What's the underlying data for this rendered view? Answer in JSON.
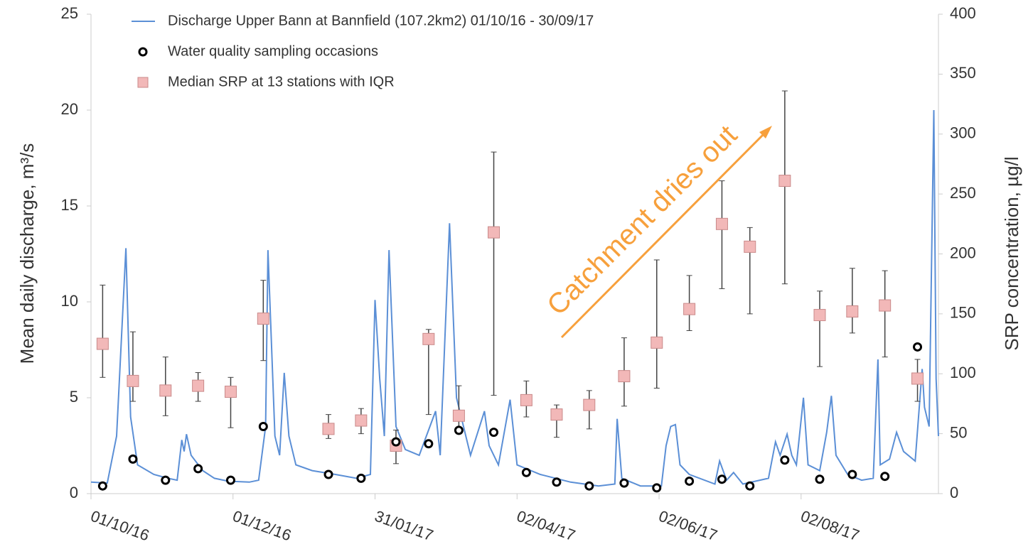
{
  "chart_data": {
    "type": "line",
    "y_label": "Mean daily discharge, m³/s",
    "y2_label": "SRP concentration, µg/l",
    "annotation": "Catchment dries out",
    "annotation_color": "#f7a03c",
    "xlim": [
      "2016-10-01",
      "2017-09-30"
    ],
    "xticks": [
      {
        "value": "2016-10-01",
        "label": "01/10/16"
      },
      {
        "value": "2016-12-01",
        "label": "01/12/16"
      },
      {
        "value": "2017-01-31",
        "label": "31/01/17"
      },
      {
        "value": "2017-04-02",
        "label": "02/04/17"
      },
      {
        "value": "2017-06-02",
        "label": "02/06/17"
      },
      {
        "value": "2017-08-02",
        "label": "02/08/17"
      }
    ],
    "ylim": [
      0,
      25
    ],
    "yticks": [
      0,
      5,
      10,
      15,
      20,
      25
    ],
    "y2lim": [
      0,
      400
    ],
    "y2ticks": [
      0,
      50,
      100,
      150,
      200,
      250,
      300,
      350,
      400
    ],
    "series": [
      {
        "name": "Discharge Upper Bann at Bannfield (107.2km2) 01/10/16 - 30/09/17",
        "type": "line",
        "color": "#5b8fd6",
        "x": [
          "2016-10-01",
          "2016-10-08",
          "2016-10-12",
          "2016-10-16",
          "2016-10-18",
          "2016-10-21",
          "2016-10-28",
          "2016-11-03",
          "2016-11-07",
          "2016-11-09",
          "2016-11-10",
          "2016-11-11",
          "2016-11-13",
          "2016-11-18",
          "2016-11-23",
          "2016-11-29",
          "2016-12-08",
          "2016-12-12",
          "2016-12-15",
          "2016-12-16",
          "2016-12-19",
          "2016-12-21",
          "2016-12-23",
          "2016-12-25",
          "2016-12-28",
          "2017-01-04",
          "2017-01-14",
          "2017-01-23",
          "2017-01-29",
          "2017-01-31",
          "2017-02-02",
          "2017-02-04",
          "2017-02-06",
          "2017-02-09",
          "2017-02-13",
          "2017-02-19",
          "2017-02-26",
          "2017-02-28",
          "2017-03-04",
          "2017-03-07",
          "2017-03-13",
          "2017-03-19",
          "2017-03-21",
          "2017-03-25",
          "2017-03-30",
          "2017-04-02",
          "2017-04-12",
          "2017-04-25",
          "2017-05-07",
          "2017-05-14",
          "2017-05-15",
          "2017-05-17",
          "2017-05-25",
          "2017-06-03",
          "2017-06-05",
          "2017-06-07",
          "2017-06-09",
          "2017-06-11",
          "2017-06-15",
          "2017-06-26",
          "2017-06-28",
          "2017-07-01",
          "2017-07-04",
          "2017-07-08",
          "2017-07-19",
          "2017-07-22",
          "2017-07-24",
          "2017-07-27",
          "2017-07-29",
          "2017-07-31",
          "2017-08-03",
          "2017-08-05",
          "2017-08-10",
          "2017-08-13",
          "2017-08-15",
          "2017-08-17",
          "2017-08-22",
          "2017-08-28",
          "2017-09-02",
          "2017-09-04",
          "2017-09-05",
          "2017-09-09",
          "2017-09-12",
          "2017-09-15",
          "2017-09-20",
          "2017-09-23",
          "2017-09-24",
          "2017-09-26",
          "2017-09-28",
          "2017-09-29",
          "2017-09-30"
        ],
        "values": [
          0.6,
          0.55,
          3,
          12.8,
          4,
          1.5,
          1.0,
          0.8,
          0.7,
          2.8,
          2.2,
          3.1,
          2.0,
          1.2,
          0.8,
          0.65,
          0.6,
          0.7,
          3.5,
          12.7,
          3,
          2,
          6.3,
          3,
          1.5,
          1.2,
          1.0,
          0.8,
          1,
          10.1,
          6,
          3,
          12.7,
          3.5,
          2.3,
          2.0,
          4.3,
          2.0,
          14.1,
          5,
          2,
          4.3,
          2.5,
          1.5,
          4.9,
          1.5,
          1.0,
          0.6,
          0.4,
          0.5,
          3.9,
          0.8,
          0.4,
          0.4,
          2.5,
          3.5,
          3.6,
          1.5,
          1.0,
          0.5,
          1.7,
          0.7,
          1.1,
          0.5,
          0.8,
          2.7,
          2,
          3.1,
          2,
          1.5,
          5.0,
          1.5,
          1.2,
          3.2,
          5.1,
          2,
          1,
          0.7,
          0.8,
          7.0,
          1.5,
          1.8,
          3.2,
          2.2,
          1.7,
          6.5,
          4.5,
          3.5,
          20.0,
          6.0,
          3
        ]
      },
      {
        "name": "Water quality sampling occasions",
        "type": "scatter",
        "color": "#000000",
        "x": [
          "2016-10-06",
          "2016-10-19",
          "2016-11-02",
          "2016-11-16",
          "2016-11-30",
          "2016-12-14",
          "2017-01-11",
          "2017-01-25",
          "2017-02-09",
          "2017-02-23",
          "2017-03-08",
          "2017-03-23",
          "2017-04-06",
          "2017-04-19",
          "2017-05-03",
          "2017-05-18",
          "2017-06-01",
          "2017-06-15",
          "2017-06-29",
          "2017-07-11",
          "2017-07-26",
          "2017-08-10",
          "2017-08-24",
          "2017-09-07",
          "2017-09-21"
        ],
        "values": [
          0.4,
          1.8,
          0.7,
          1.3,
          0.7,
          3.5,
          1.0,
          0.8,
          2.7,
          2.6,
          3.3,
          3.2,
          1.1,
          0.6,
          0.4,
          0.55,
          0.3,
          0.65,
          0.75,
          0.4,
          1.75,
          0.75,
          1.0,
          0.9,
          7.65
        ]
      },
      {
        "name": "Median SRP at 13 stations with IQR",
        "type": "errorbar",
        "color": "#f2b8b8",
        "axis": "y2",
        "x": [
          "2016-10-06",
          "2016-10-19",
          "2016-11-02",
          "2016-11-16",
          "2016-11-30",
          "2016-12-14",
          "2017-01-11",
          "2017-01-25",
          "2017-02-09",
          "2017-02-23",
          "2017-03-08",
          "2017-03-23",
          "2017-04-06",
          "2017-04-19",
          "2017-05-03",
          "2017-05-18",
          "2017-06-01",
          "2017-06-15",
          "2017-06-29",
          "2017-07-11",
          "2017-07-26",
          "2017-08-10",
          "2017-08-24",
          "2017-09-07",
          "2017-09-21"
        ],
        "values": [
          125,
          94,
          86,
          90,
          85,
          146,
          54,
          61,
          40,
          129,
          65,
          218,
          78,
          66,
          74,
          98,
          126,
          154,
          225,
          206,
          261,
          149,
          152,
          157,
          96
        ],
        "q1": [
          97,
          77,
          65,
          77,
          55,
          111,
          46,
          50,
          25,
          66,
          53,
          82,
          64,
          47,
          54,
          73,
          88,
          136,
          171,
          150,
          175,
          106,
          134,
          114,
          77
        ],
        "q3": [
          174,
          135,
          114,
          101,
          97,
          178,
          66,
          71,
          53,
          137,
          90,
          285,
          94,
          74,
          86,
          130,
          195,
          182,
          261,
          222,
          336,
          169,
          188,
          186,
          112
        ]
      }
    ]
  }
}
